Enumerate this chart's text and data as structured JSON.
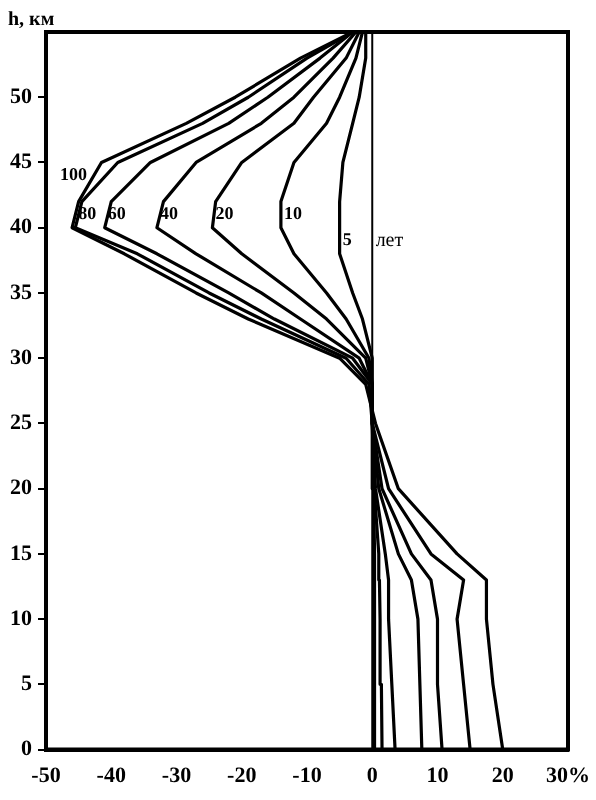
{
  "chart_data": {
    "type": "line",
    "ylabel": "h, км",
    "xlim": [
      -50,
      30
    ],
    "xticks": [
      -50,
      -40,
      -30,
      -20,
      -10,
      0,
      10,
      20,
      {
        "value": 30,
        "label": "30%"
      }
    ],
    "ylim": [
      0,
      55
    ],
    "yticks": [
      0,
      5,
      10,
      15,
      20,
      25,
      30,
      35,
      40,
      45,
      50
    ],
    "grid": false,
    "legend": false,
    "marker": "none",
    "line_style": "solid",
    "ref_lines": [
      {
        "axis": "x",
        "value": 0,
        "color": "#000000"
      }
    ],
    "annotations": [
      "лет"
    ],
    "series": [
      {
        "name": "100",
        "color": "#000000",
        "x": [
          20,
          18.5,
          17.5,
          17.5,
          13,
          4,
          0.5,
          -1,
          -5,
          -19,
          -27,
          -38,
          -46,
          -45,
          -41.5,
          -28.5,
          -21,
          -11,
          -3
        ],
        "values": [
          0,
          5,
          10,
          13,
          15,
          20,
          25,
          28,
          30,
          33,
          35,
          38,
          40,
          42,
          45,
          48,
          50,
          53,
          55
        ]
      },
      {
        "name": "80",
        "color": "#000000",
        "x": [
          15,
          14,
          13,
          14,
          9,
          2.5,
          0,
          -0.5,
          -4,
          -17,
          -25,
          -36,
          -45.5,
          -44.5,
          -39,
          -26,
          -19,
          -10,
          -3
        ],
        "values": [
          0,
          5,
          10,
          13,
          15,
          20,
          25,
          28,
          30,
          33,
          35,
          38,
          40,
          42,
          45,
          48,
          50,
          53,
          55
        ]
      },
      {
        "name": "60",
        "color": "#000000",
        "x": [
          10.7,
          10,
          10,
          9,
          6,
          1.5,
          0,
          0,
          -3,
          -15,
          -22,
          -33,
          -41,
          -40,
          -34,
          -22,
          -16,
          -8,
          -3
        ],
        "values": [
          0,
          5,
          10,
          13,
          15,
          20,
          25,
          28,
          30,
          33,
          35,
          38,
          40,
          42,
          45,
          48,
          50,
          53,
          55
        ]
      },
      {
        "name": "40",
        "color": "#000000",
        "x": [
          7.6,
          7.3,
          7,
          6,
          4,
          1,
          0,
          0,
          -2,
          -11,
          -17,
          -27,
          -33,
          -32,
          -27,
          -17,
          -12,
          -6,
          -2.5
        ],
        "values": [
          0,
          5,
          10,
          13,
          15,
          20,
          25,
          28,
          30,
          33,
          35,
          38,
          40,
          42,
          45,
          48,
          50,
          53,
          55
        ]
      },
      {
        "name": "20",
        "color": "#000000",
        "x": [
          3.5,
          3,
          2.5,
          2.5,
          2,
          0.5,
          0,
          0,
          -1,
          -7,
          -12,
          -20,
          -24.5,
          -24,
          -20,
          -12,
          -9,
          -4,
          -2
        ],
        "values": [
          0,
          5,
          10,
          13,
          15,
          20,
          25,
          28,
          30,
          33,
          35,
          38,
          40,
          42,
          45,
          48,
          50,
          53,
          55
        ]
      },
      {
        "name": "10",
        "color": "#000000",
        "x": [
          1.5,
          1.4,
          1.2,
          1.1,
          1,
          0.3,
          0,
          0,
          -0.5,
          -4,
          -7,
          -12,
          -14,
          -14,
          -12,
          -7,
          -5,
          -2.5,
          -1.5
        ],
        "values": [
          0,
          5,
          10,
          13,
          15,
          20,
          25,
          28,
          30,
          33,
          35,
          38,
          40,
          42,
          45,
          48,
          50,
          53,
          55
        ]
      },
      {
        "name": "5",
        "color": "#000000",
        "x": [
          0.5,
          0.5,
          0.3,
          0.3,
          0.3,
          0.2,
          0,
          0,
          0,
          -1.5,
          -3,
          -5,
          -5,
          -5,
          -4.5,
          -3,
          -2,
          -1,
          -1
        ],
        "values": [
          0,
          5,
          10,
          13,
          15,
          20,
          25,
          28,
          30,
          33,
          35,
          38,
          40,
          42,
          45,
          48,
          50,
          53,
          55
        ]
      }
    ]
  }
}
